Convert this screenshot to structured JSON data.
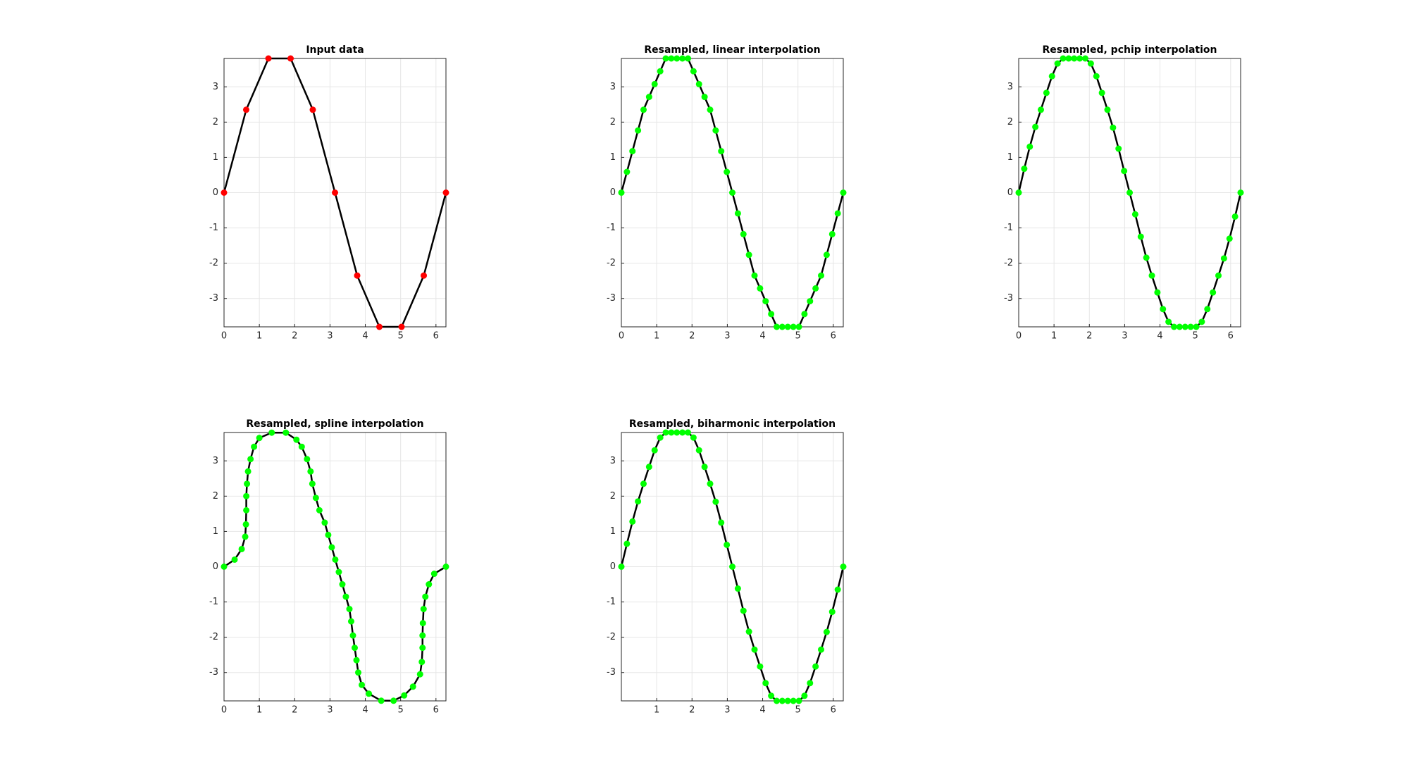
{
  "chart_data": [
    {
      "type": "line",
      "title": "Input data",
      "x": [
        0,
        0.628,
        1.257,
        1.885,
        2.513,
        3.142,
        3.77,
        4.398,
        5.027,
        5.655,
        6.283
      ],
      "series": [
        {
          "color": "#000000",
          "marker_color": "#ff0000",
          "values": [
            0,
            2.351,
            3.804,
            3.804,
            2.351,
            0,
            -2.351,
            -3.804,
            -3.804,
            -2.351,
            0
          ]
        }
      ],
      "xlim": [
        0,
        6.283
      ],
      "ylim": [
        -3.804,
        3.804
      ],
      "xticks": [
        0,
        1,
        2,
        3,
        4,
        5,
        6
      ],
      "yticks": [
        -3,
        -2,
        -1,
        0,
        1,
        2,
        3
      ],
      "grid": true
    },
    {
      "type": "line",
      "title": "Resampled, linear interpolation",
      "x": [
        0,
        0.157,
        0.314,
        0.471,
        0.628,
        0.785,
        0.942,
        1.1,
        1.257,
        1.414,
        1.571,
        1.728,
        1.885,
        2.042,
        2.199,
        2.356,
        2.513,
        2.67,
        2.827,
        2.985,
        3.142,
        3.299,
        3.456,
        3.613,
        3.77,
        3.927,
        4.084,
        4.241,
        4.398,
        4.555,
        4.712,
        4.869,
        5.027,
        5.184,
        5.341,
        5.498,
        5.655,
        5.812,
        5.969,
        6.126,
        6.283
      ],
      "series": [
        {
          "color": "#000000",
          "marker_color": "#00ff00",
          "values": [
            0,
            0.588,
            1.176,
            1.763,
            2.351,
            2.714,
            3.077,
            3.441,
            3.804,
            3.804,
            3.804,
            3.804,
            3.804,
            3.441,
            3.077,
            2.714,
            2.351,
            1.763,
            1.176,
            0.588,
            0,
            -0.588,
            -1.176,
            -1.763,
            -2.351,
            -2.714,
            -3.077,
            -3.441,
            -3.804,
            -3.804,
            -3.804,
            -3.804,
            -3.804,
            -3.441,
            -3.077,
            -2.714,
            -2.351,
            -1.763,
            -1.176,
            -0.588,
            0
          ]
        }
      ],
      "xlim": [
        0,
        6.283
      ],
      "ylim": [
        -3.804,
        3.804
      ],
      "xticks": [
        0,
        1,
        2,
        3,
        4,
        5,
        6
      ],
      "yticks": [
        -3,
        -2,
        -1,
        0,
        1,
        2,
        3
      ],
      "grid": true
    },
    {
      "type": "line",
      "title": "Resampled, pchip interpolation",
      "x": [
        0,
        0.157,
        0.314,
        0.471,
        0.628,
        0.785,
        0.942,
        1.1,
        1.257,
        1.414,
        1.571,
        1.728,
        1.885,
        2.042,
        2.199,
        2.356,
        2.513,
        2.67,
        2.827,
        2.985,
        3.142,
        3.299,
        3.456,
        3.613,
        3.77,
        3.927,
        4.084,
        4.241,
        4.398,
        4.555,
        4.712,
        4.869,
        5.027,
        5.184,
        5.341,
        5.498,
        5.655,
        5.812,
        5.969,
        6.126,
        6.283
      ],
      "series": [
        {
          "color": "#000000",
          "marker_color": "#00ff00",
          "values": [
            0,
            0.678,
            1.303,
            1.864,
            2.351,
            2.829,
            3.301,
            3.661,
            3.804,
            3.804,
            3.804,
            3.804,
            3.804,
            3.661,
            3.301,
            2.829,
            2.351,
            1.843,
            1.247,
            0.614,
            0,
            -0.614,
            -1.247,
            -1.843,
            -2.351,
            -2.829,
            -3.301,
            -3.661,
            -3.804,
            -3.804,
            -3.804,
            -3.804,
            -3.804,
            -3.661,
            -3.301,
            -2.829,
            -2.351,
            -1.864,
            -1.303,
            -0.678,
            0
          ]
        }
      ],
      "xlim": [
        0,
        6.283
      ],
      "ylim": [
        -3.804,
        3.804
      ],
      "xticks": [
        0,
        1,
        2,
        3,
        4,
        5,
        6
      ],
      "yticks": [
        -3,
        -2,
        -1,
        0,
        1,
        2,
        3
      ],
      "grid": true
    },
    {
      "type": "line",
      "title": "Resampled, spline interpolation",
      "x": [
        0,
        0.3,
        0.5,
        0.6,
        0.62,
        0.63,
        0.63,
        0.65,
        0.68,
        0.75,
        0.85,
        1.0,
        1.35,
        1.75,
        2.05,
        2.2,
        2.35,
        2.45,
        2.5,
        2.6,
        2.7,
        2.85,
        2.95,
        3.05,
        3.15,
        3.25,
        3.35,
        3.45,
        3.55,
        3.6,
        3.65,
        3.7,
        3.75,
        3.8,
        3.9,
        4.1,
        4.45,
        4.8,
        5.1,
        5.35,
        5.55,
        5.6,
        5.62,
        5.62,
        5.63,
        5.65,
        5.7,
        5.8,
        5.95,
        6.283
      ],
      "series": [
        {
          "color": "#000000",
          "marker_color": "#00ff00",
          "values": [
            0,
            0.2,
            0.5,
            0.85,
            1.2,
            1.6,
            2.0,
            2.35,
            2.7,
            3.05,
            3.4,
            3.65,
            3.8,
            3.8,
            3.6,
            3.4,
            3.05,
            2.7,
            2.35,
            1.95,
            1.6,
            1.25,
            0.9,
            0.55,
            0.2,
            -0.15,
            -0.5,
            -0.85,
            -1.2,
            -1.55,
            -1.95,
            -2.3,
            -2.65,
            -3.0,
            -3.35,
            -3.6,
            -3.8,
            -3.8,
            -3.65,
            -3.4,
            -3.05,
            -2.7,
            -2.3,
            -1.95,
            -1.6,
            -1.2,
            -0.85,
            -0.5,
            -0.2,
            0
          ]
        }
      ],
      "xlim": [
        0,
        6.283
      ],
      "ylim": [
        -3.804,
        3.804
      ],
      "xticks": [
        0,
        1,
        2,
        3,
        4,
        5,
        6
      ],
      "yticks": [
        -3,
        -2,
        -1,
        0,
        1,
        2,
        3
      ],
      "grid": true
    },
    {
      "type": "line",
      "title": "Resampled, biharmonic interpolation",
      "x": [
        0,
        0.157,
        0.314,
        0.471,
        0.628,
        0.785,
        0.942,
        1.1,
        1.257,
        1.414,
        1.571,
        1.728,
        1.885,
        2.042,
        2.199,
        2.356,
        2.513,
        2.67,
        2.827,
        2.985,
        3.142,
        3.299,
        3.456,
        3.613,
        3.77,
        3.927,
        4.084,
        4.241,
        4.398,
        4.555,
        4.712,
        4.869,
        5.027,
        5.184,
        5.341,
        5.498,
        5.655,
        5.812,
        5.969,
        6.126,
        6.283
      ],
      "series": [
        {
          "color": "#000000",
          "marker_color": "#00ff00",
          "values": [
            0,
            0.65,
            1.28,
            1.85,
            2.351,
            2.83,
            3.3,
            3.66,
            3.804,
            3.804,
            3.804,
            3.804,
            3.804,
            3.66,
            3.3,
            2.83,
            2.351,
            1.84,
            1.25,
            0.62,
            0,
            -0.62,
            -1.25,
            -1.84,
            -2.351,
            -2.83,
            -3.3,
            -3.66,
            -3.804,
            -3.804,
            -3.804,
            -3.804,
            -3.804,
            -3.66,
            -3.3,
            -2.83,
            -2.351,
            -1.85,
            -1.28,
            -0.65,
            0
          ]
        }
      ],
      "xlim": [
        0,
        6.283
      ],
      "ylim": [
        -3.804,
        3.804
      ],
      "xticks": [
        1,
        2,
        3,
        4,
        5,
        6
      ],
      "yticks": [
        -3,
        -2,
        -1,
        0,
        1,
        2,
        3
      ],
      "grid": true
    }
  ]
}
